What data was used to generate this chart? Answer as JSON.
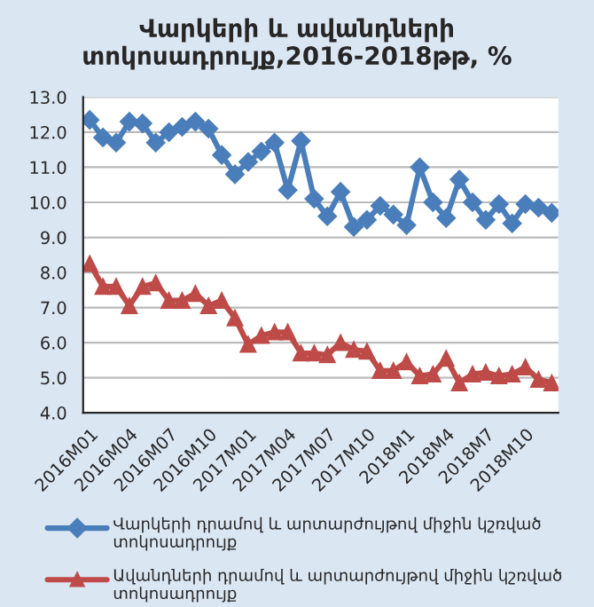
{
  "chart_data": {
    "type": "line",
    "title": "Վարկերի և ավանդների տոկոսադրույք,2016-2018թթ, %",
    "categories": [
      "2016M01",
      null,
      null,
      "2016M04",
      null,
      null,
      "2016M07",
      null,
      null,
      "2016M10",
      null,
      null,
      "2017M01",
      null,
      null,
      "2017M04",
      null,
      null,
      "2017M07",
      null,
      null,
      "2017M10",
      null,
      null,
      "2018M1",
      null,
      null,
      "2018M4",
      null,
      null,
      "2018M7",
      null,
      null,
      "2018M10",
      null,
      null
    ],
    "series": [
      {
        "name": "Վարկերի դրամով և արտարժույթով միջին կշռված տոկոսադրույք",
        "color": "#4a7ebb",
        "marker": "diamond",
        "values": [
          12.35,
          11.85,
          11.7,
          12.3,
          12.25,
          11.7,
          12.0,
          12.15,
          12.3,
          12.1,
          11.35,
          10.8,
          11.15,
          11.45,
          11.7,
          10.35,
          11.75,
          10.1,
          9.6,
          10.3,
          9.3,
          9.5,
          9.9,
          9.65,
          9.35,
          11.0,
          10.0,
          9.55,
          10.65,
          10.0,
          9.5,
          9.95,
          9.4,
          9.95,
          9.85,
          9.7
        ]
      },
      {
        "name": "Ավանդների դրամով և արտարժույթով միջին կշռված տոկոսադրույք",
        "color": "#be4b48",
        "marker": "triangle",
        "values": [
          8.25,
          7.6,
          7.6,
          7.05,
          7.6,
          7.7,
          7.2,
          7.2,
          7.4,
          7.05,
          7.2,
          6.7,
          5.95,
          6.2,
          6.3,
          6.3,
          5.7,
          5.7,
          5.65,
          6.0,
          5.8,
          5.75,
          5.2,
          5.2,
          5.45,
          5.05,
          5.1,
          5.55,
          4.85,
          5.1,
          5.15,
          5.05,
          5.1,
          5.3,
          4.95,
          4.85
        ]
      }
    ],
    "ylim": [
      4.0,
      13.0
    ],
    "yticks": [
      {
        "value": 4,
        "label": "4.0"
      },
      {
        "value": 5,
        "label": "5.0"
      },
      {
        "value": 6,
        "label": "6.0"
      },
      {
        "value": 7,
        "label": "7.0"
      },
      {
        "value": 8,
        "label": "8.0"
      },
      {
        "value": 9,
        "label": "9.0"
      },
      {
        "value": 10,
        "label": "10.0"
      },
      {
        "value": 11,
        "label": "11.0"
      },
      {
        "value": 12,
        "label": "12.0"
      },
      {
        "value": 13,
        "label": "13.0"
      }
    ],
    "grid": "y",
    "legend": "bottom",
    "line_style": "solid"
  }
}
